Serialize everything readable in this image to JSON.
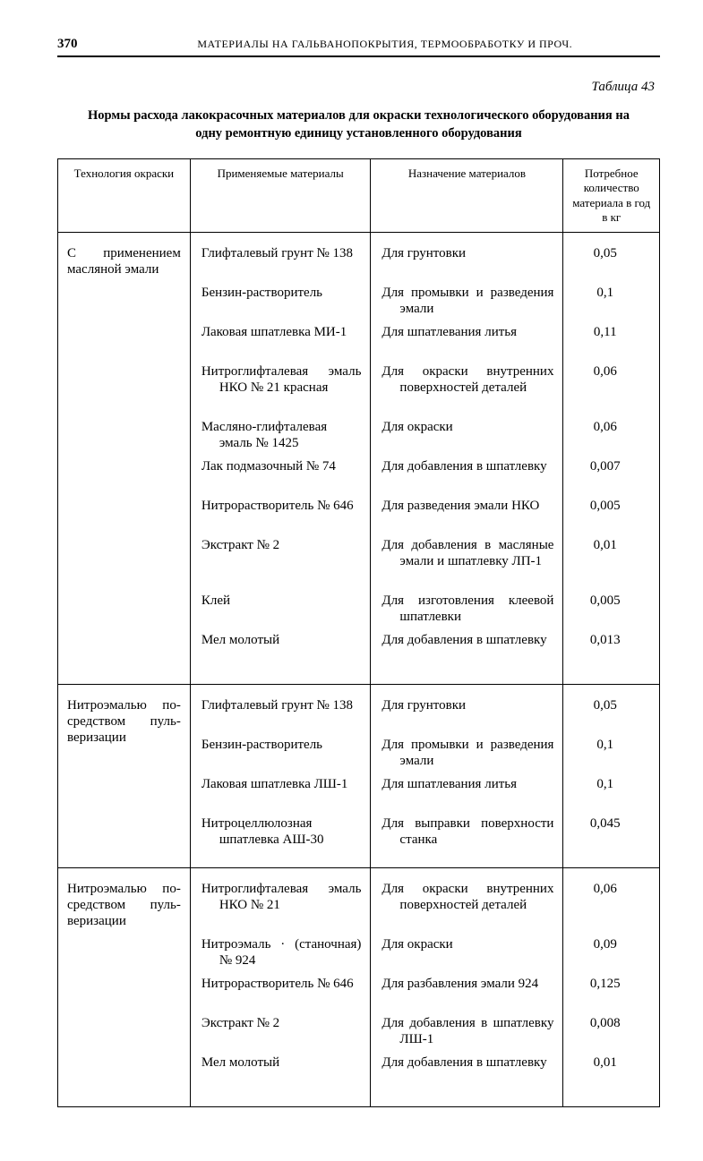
{
  "page_number": "370",
  "running_head": "МАТЕРИАЛЫ НА ГАЛЬВАНОПОКРЫТИЯ, ТЕРМООБРАБОТКУ И ПРОЧ.",
  "table_label": "Таблица 43",
  "title": "Нормы расхода лакокрасочных материалов для окраски технологического оборудования на одну ремонтную единицу установленного оборудования",
  "columns": [
    "Технология окраски",
    "Применяемые материалы",
    "Назначение материалов",
    "Потребное количество материала в год в кг"
  ],
  "sections": [
    {
      "tech": "С применением масляной эма­ли",
      "items": [
        {
          "material": "Глифталевый грунт № 138",
          "purpose": "Для грунтовки",
          "qty": "0,05",
          "h": 2
        },
        {
          "material": "Бензин-растворитель",
          "purpose": "Для промывки и раз­ведения эмали",
          "qty": "0,1",
          "h": 2
        },
        {
          "material": "Лаковая шпатлевка МИ-1",
          "purpose": "Для шпатлевания ли­тья",
          "qty": "0,11",
          "h": 2
        },
        {
          "material": "Нитроглифталевая эмаль НКО № 21 красная",
          "purpose": "Для окраски внутрен­них поверхностей деталей",
          "qty": "0,06",
          "h": 3
        },
        {
          "material": "Масляно-глифталевая эмаль № 1425",
          "purpose": "Для окраски",
          "qty": "0,06",
          "h": 2
        },
        {
          "material": "Лак подмазочный № 74",
          "purpose": "Для добавления в шпатлевку",
          "qty": "0,007",
          "h": 2
        },
        {
          "material": "Нитрорастворитель № 646",
          "purpose": "Для разведения эмали НКО",
          "qty": "0,005",
          "h": 2
        },
        {
          "material": "Экстракт № 2",
          "purpose": "Для добавления в ма­сляные эмали и шпа­тлевку ЛП-1",
          "qty": "0,01",
          "h": 3
        },
        {
          "material": "Клей",
          "purpose": "Для изготовления кле­евой шпатлевки",
          "qty": "0,005",
          "h": 2
        },
        {
          "material": "Мел молотый",
          "purpose": "Для добавления в шпатлевку",
          "qty": "0,013",
          "h": 2
        }
      ]
    },
    {
      "tech": "Нитроэмалью по­средством пуль­веризации",
      "items": [
        {
          "material": "Глифталевый грунт № 138",
          "purpose": "Для грунтовки",
          "qty": "0,05",
          "h": 2
        },
        {
          "material": "Бензин-растворитель",
          "purpose": "Для промывки и раз­ведения эмали",
          "qty": "0,1",
          "h": 2
        },
        {
          "material": "Лаковая шпатлевка ЛШ-1",
          "purpose": "Для шпатлевания ли­тья",
          "qty": "0,1",
          "h": 2
        },
        {
          "material": "Нитроцеллюлозная шпатлевка АШ-30",
          "purpose": "Для выправки поверх­ности станка",
          "qty": "0,045",
          "h": 2
        }
      ]
    },
    {
      "tech": "Нитроэмалью по­средством пуль­веризации",
      "items": [
        {
          "material": "Нитроглифталевая эмаль НКО № 21",
          "purpose": "Для окраски внутрен­них поверхностей деталей",
          "qty": "0,06",
          "h": 3
        },
        {
          "material": "Нитроэмаль · (станоч­ная) № 924",
          "purpose": "Для окраски",
          "qty": "0,09",
          "h": 2
        },
        {
          "material": "Нитрорастворитель № 646",
          "purpose": "Для разбавления эма­ли 924",
          "qty": "0,125",
          "h": 2
        },
        {
          "material": "Экстракт № 2",
          "purpose": "Для добавления в шпатлевку ЛШ-1",
          "qty": "0,008",
          "h": 2
        },
        {
          "material": "Мел молотый",
          "purpose": "Для добавления в шпатлевку",
          "qty": "0,01",
          "h": 2
        }
      ]
    }
  ],
  "style": {
    "background_color": "#ffffff",
    "text_color": "#000000",
    "border_color": "#000000",
    "font_family": "Times New Roman",
    "body_fontsize_pt": 11,
    "header_fontsize_pt": 9,
    "title_fontsize_pt": 11,
    "column_widths_pct": [
      22,
      30,
      32,
      16
    ]
  }
}
